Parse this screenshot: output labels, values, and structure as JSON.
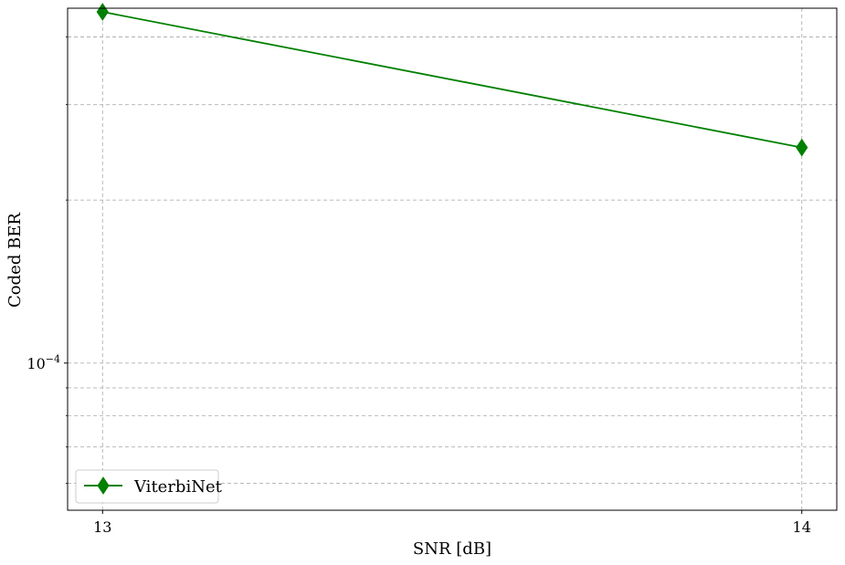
{
  "chart_data": {
    "type": "line",
    "title": "",
    "xlabel": "SNR [dB]",
    "ylabel": "Coded BER",
    "x": [
      13,
      14
    ],
    "xticks": [
      "13",
      "14"
    ],
    "xlim": [
      12.95,
      14.05
    ],
    "ylim": [
      5.35e-05,
      0.000452
    ],
    "yscale": "log",
    "ytick_major": {
      "value": 0.0001,
      "mantissa": "10",
      "exponent": "−4"
    },
    "y_minor_ticks": [
      6e-05,
      7e-05,
      8e-05,
      9e-05,
      0.0002,
      0.0003,
      0.0004
    ],
    "grid": true,
    "legend_position": "lower-left",
    "series": [
      {
        "name": "ViterbiNet",
        "color": "#008000",
        "marker": "thin-diamond",
        "y": [
          0.000445,
          0.00025
        ]
      }
    ]
  }
}
